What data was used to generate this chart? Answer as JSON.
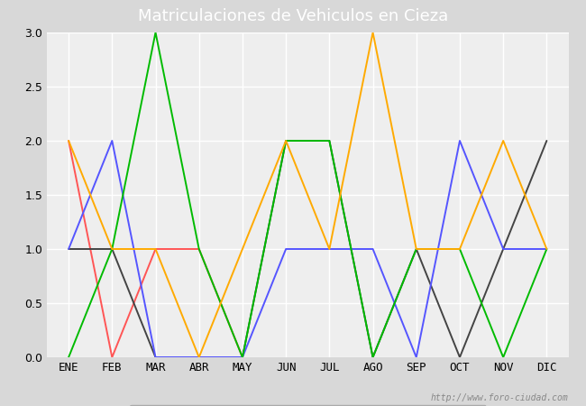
{
  "title": "Matriculaciones de Vehiculos en Cieza",
  "months": [
    "ENE",
    "FEB",
    "MAR",
    "ABR",
    "MAY",
    "JUN",
    "JUL",
    "AGO",
    "SEP",
    "OCT",
    "NOV",
    "DIC"
  ],
  "series": {
    "2024": [
      2,
      0,
      1,
      1,
      0,
      null,
      null,
      null,
      null,
      null,
      null,
      null
    ],
    "2023": [
      1,
      1,
      0,
      0,
      0,
      2,
      2,
      0,
      1,
      0,
      1,
      2
    ],
    "2022": [
      1,
      2,
      0,
      0,
      0,
      1,
      1,
      1,
      0,
      2,
      1,
      1
    ],
    "2021": [
      0,
      1,
      3,
      1,
      0,
      2,
      2,
      0,
      1,
      1,
      0,
      1
    ],
    "2020": [
      2,
      1,
      1,
      0,
      1,
      2,
      1,
      3,
      1,
      1,
      2,
      1
    ]
  },
  "colors": {
    "2024": "#ff5555",
    "2023": "#444444",
    "2022": "#5555ff",
    "2021": "#00bb00",
    "2020": "#ffaa00"
  },
  "ylim": [
    0.0,
    3.0
  ],
  "yticks": [
    0.0,
    0.5,
    1.0,
    1.5,
    2.0,
    2.5,
    3.0
  ],
  "fig_bg_color": "#d8d8d8",
  "plot_bg_color": "#eeeeee",
  "title_bg_color": "#5577bb",
  "title_color": "#ffffff",
  "watermark": "http://www.foro-ciudad.com",
  "title_fontsize": 13,
  "tick_fontsize": 9,
  "legend_fontsize": 9
}
